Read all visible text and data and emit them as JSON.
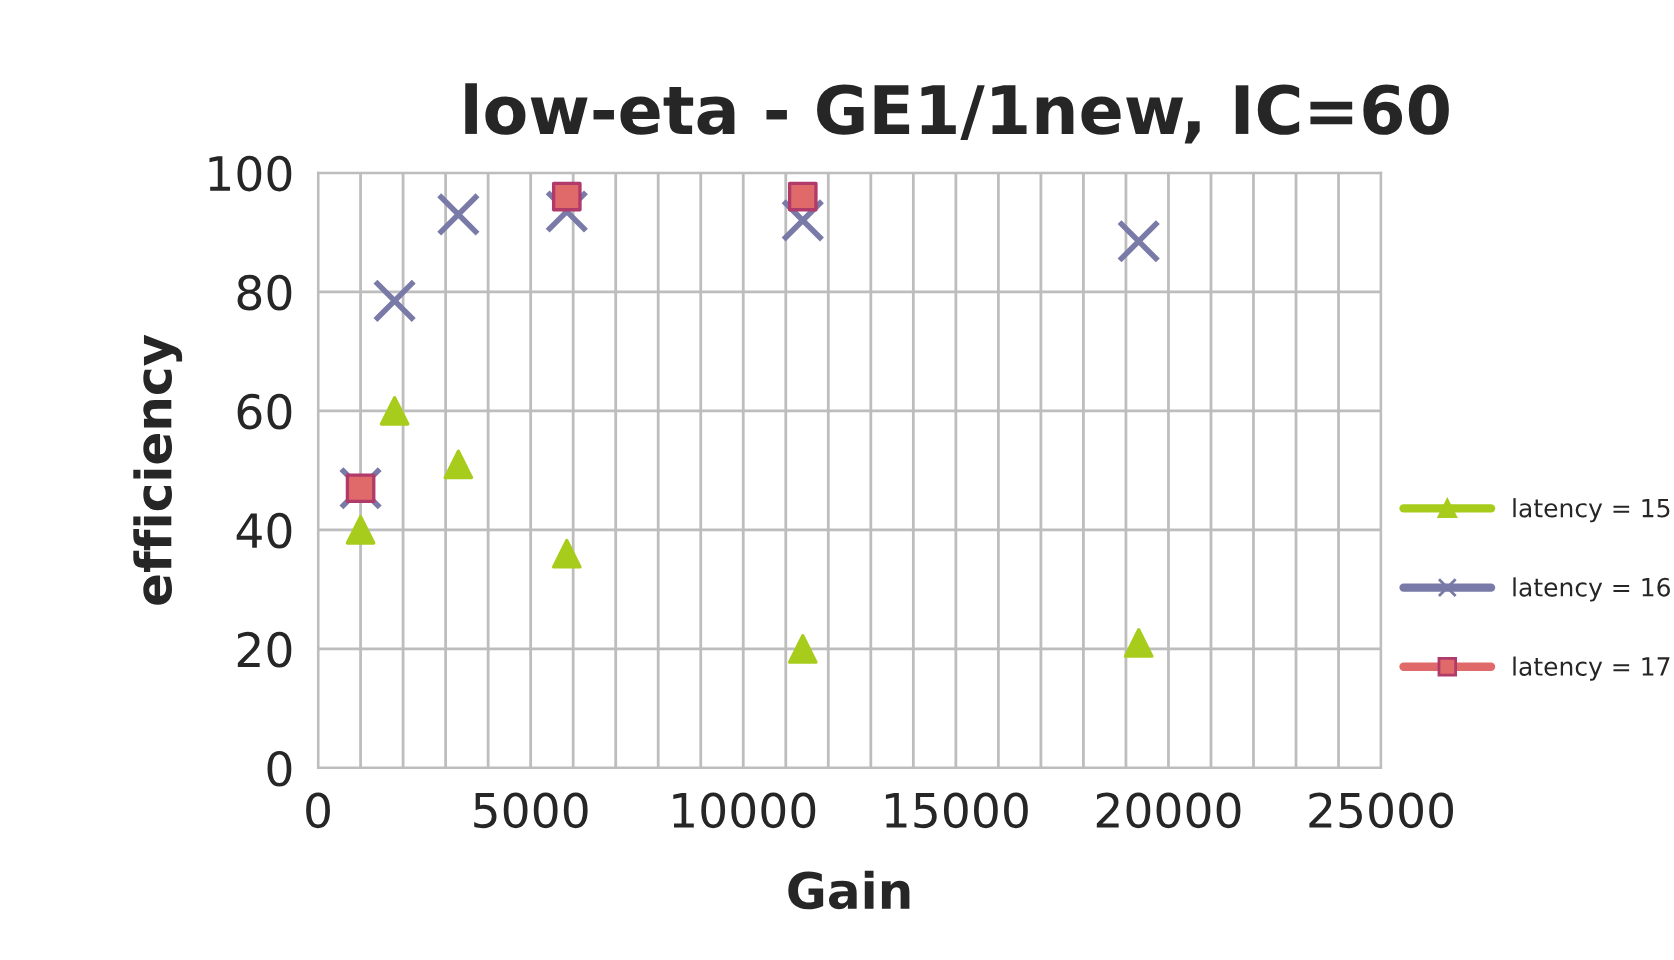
{
  "chart_data": {
    "type": "scatter",
    "title": "low-eta - GE1/1new, IC=60",
    "xlabel": "Gain",
    "ylabel": "efficiency",
    "xlim": [
      0,
      25000
    ],
    "xticks": [
      0,
      5000,
      10000,
      15000,
      20000,
      25000
    ],
    "ylim": [
      0,
      100
    ],
    "yticks": [
      0,
      20,
      40,
      60,
      80,
      100
    ],
    "grid": true,
    "legend": "right",
    "series": [
      {
        "name": "latency = 15",
        "color": "#a8cc1c",
        "marker": "triangle",
        "x": [
          1000,
          1800,
          3300,
          5850,
          11400,
          19300
        ],
        "values": [
          40,
          60,
          51,
          36,
          20,
          21
        ]
      },
      {
        "name": "latency = 16",
        "color": "#7a7aa8",
        "marker": "cross",
        "x": [
          1000,
          1800,
          3300,
          5850,
          11400,
          19300
        ],
        "values": [
          47,
          78.5,
          93,
          93.5,
          92,
          88.5
        ]
      },
      {
        "name": "latency = 17",
        "color": "#e06a6a",
        "marker": "square",
        "x": [
          1000,
          5850,
          11400
        ],
        "values": [
          47,
          96,
          96
        ]
      }
    ]
  }
}
